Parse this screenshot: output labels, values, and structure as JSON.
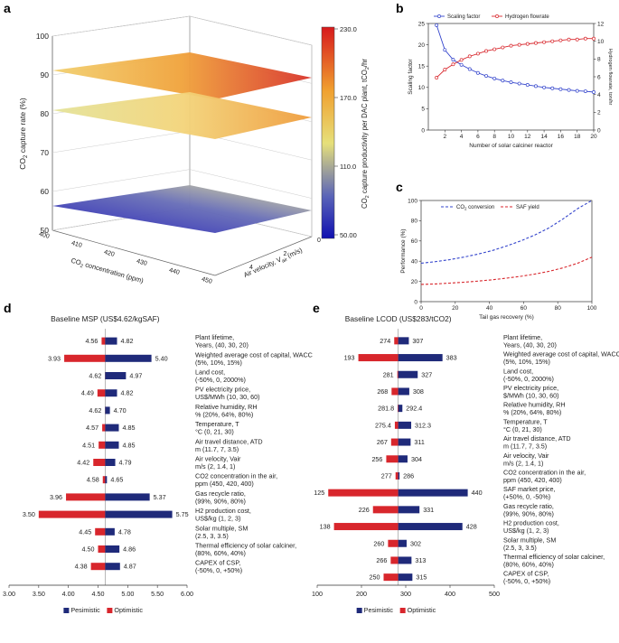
{
  "panels": {
    "a": "a",
    "b": "b",
    "c": "c",
    "d": "d",
    "e": "e"
  },
  "colors": {
    "pes": "#1f2a7a",
    "opt": "#d8262c",
    "blueLine": "#3344cc",
    "redLine": "#d8262c",
    "grid": "#aaaaaa"
  },
  "chart_data": [
    {
      "id": "a",
      "type": "surface3d",
      "zlabel": "CO2 capture rate (%)",
      "zlabel_parts": {
        "pre": "CO",
        "sub": "2",
        "post": " capture rate (%)"
      },
      "zticks": [
        "50",
        "60",
        "70",
        "80",
        "90",
        "100"
      ],
      "xlabel": "CO2 concentration (ppm)",
      "xlabel_parts": {
        "pre": "CO",
        "sub": "2",
        "post": " concentration (ppm)"
      },
      "xticks": [
        "450",
        "440",
        "430",
        "420",
        "410",
        "400"
      ],
      "ylabel": "Air velocity, Vair (m/s)",
      "ylabel_parts": {
        "pre": "Air velocity, V",
        "sub": "air",
        "post": " (m/s)"
      },
      "yticks": [
        "0",
        "2",
        "4"
      ],
      "planes": [
        90,
        80,
        50
      ],
      "colorbar": {
        "label": "CO2 capture productivity per DAC plant, tCO2/hr",
        "label_parts": {
          "pre": "CO",
          "sub": "2",
          "mid": " capture productivity per DAC plant, tCO",
          "sub2": "2",
          "post": "/hr"
        },
        "ticks": [
          "230.0",
          "170.0",
          "110.0",
          "50.00"
        ]
      }
    },
    {
      "id": "b",
      "type": "line",
      "x": [
        1,
        2,
        3,
        4,
        5,
        6,
        7,
        8,
        9,
        10,
        11,
        12,
        13,
        14,
        15,
        16,
        17,
        18,
        19,
        20
      ],
      "series": [
        {
          "name": "Scaling factor",
          "axis": "left",
          "values": [
            24.6,
            18.8,
            16.5,
            15.3,
            14.3,
            13.4,
            12.7,
            12.1,
            11.6,
            11.2,
            10.9,
            10.6,
            10.3,
            10.0,
            9.8,
            9.6,
            9.4,
            9.2,
            9.1,
            8.9
          ]
        },
        {
          "name": "Hydrogen flowrate",
          "axis": "right",
          "values": [
            5.9,
            6.8,
            7.4,
            7.9,
            8.3,
            8.6,
            8.9,
            9.1,
            9.3,
            9.5,
            9.6,
            9.7,
            9.8,
            9.9,
            10.0,
            10.1,
            10.2,
            10.2,
            10.3,
            10.3
          ]
        }
      ],
      "xlabel": "Number of solar calciner reactor",
      "ylabel": "Scaling factor",
      "y2label": "Hydrogen flowrate, ton/hr",
      "xlim": [
        0,
        20
      ],
      "ylim": [
        0,
        25
      ],
      "y2lim": [
        0,
        12
      ],
      "xticks": [
        "2",
        "4",
        "6",
        "8",
        "10",
        "12",
        "14",
        "16",
        "18",
        "20"
      ],
      "yticks": [
        "0",
        "5",
        "10",
        "15",
        "20",
        "25"
      ],
      "y2ticks": [
        "0",
        "2",
        "4",
        "6",
        "8",
        "10",
        "12"
      ]
    },
    {
      "id": "c",
      "type": "line",
      "series": [
        {
          "name": "CO2 conversion",
          "name_parts": {
            "pre": "CO",
            "sub": "2",
            "post": " conversion"
          },
          "values": [
            38,
            39.5,
            41.5,
            44,
            47,
            50.5,
            55,
            60,
            66,
            73,
            82,
            92,
            100
          ]
        },
        {
          "name": "SAF yield",
          "values": [
            17,
            17.5,
            18.3,
            19.2,
            20.3,
            21.6,
            23.2,
            25,
            27.3,
            30,
            33.5,
            38,
            44
          ]
        }
      ],
      "x": [
        0,
        8.3,
        16.7,
        25,
        33.3,
        41.7,
        50,
        58.3,
        66.7,
        75,
        83.3,
        91.7,
        100
      ],
      "xlabel": "Tail gas recovery (%)",
      "ylabel": "Performance (%)",
      "xlim": [
        0,
        100
      ],
      "ylim": [
        0,
        100
      ],
      "xticks": [
        "0",
        "20",
        "40",
        "60",
        "80",
        "100"
      ],
      "yticks": [
        "0",
        "20",
        "40",
        "60",
        "80",
        "100"
      ]
    },
    {
      "id": "d",
      "type": "tornado",
      "title": "Baseline MSP (US$4.62/kgSAF)",
      "baseline": 4.62,
      "xlim": [
        3.0,
        6.0
      ],
      "xticks": [
        "3.00",
        "3.50",
        "4.00",
        "4.50",
        "5.00",
        "5.50",
        "6.00"
      ],
      "legend": {
        "pes": "Pesimistic",
        "opt": "Optimistic"
      },
      "rows": [
        {
          "l1": "Plant lifetime,",
          "l2": "Years, (40, 30, 20)",
          "opt": 4.56,
          "pes": 4.82,
          "optL": "4.56",
          "pesL": "4.82"
        },
        {
          "l1": "Weighted average cost of capital, WACC",
          "l2": "(5%, 10%, 15%)",
          "opt": 3.93,
          "pes": 5.4,
          "optL": "3.93",
          "pesL": "5.40"
        },
        {
          "l1": "Land cost,",
          "l2": "(-50%, 0, 2000%)",
          "opt": 4.62,
          "pes": 4.97,
          "optL": "4.62",
          "pesL": "4.97"
        },
        {
          "l1": "PV electricity price,",
          "l2": "US$/MWh (10, 30, 60)",
          "opt": 4.49,
          "pes": 4.82,
          "optL": "4.49",
          "pesL": "4.82"
        },
        {
          "l1": "Relative humidity, RH",
          "l2": "% (20%, 64%, 80%)",
          "opt": 4.62,
          "pes": 4.7,
          "optL": "4.62",
          "pesL": "4.70"
        },
        {
          "l1": "Temperature, T",
          "l2": "°C (0, 21, 30)",
          "opt": 4.57,
          "pes": 4.85,
          "optL": "4.57",
          "pesL": "4.85"
        },
        {
          "l1": "Air travel distance, ATD",
          "l2": "m (11.7, 7, 3.5)",
          "opt": 4.51,
          "pes": 4.85,
          "optL": "4.51",
          "pesL": "4.85"
        },
        {
          "l1": "Air velocity, Vair",
          "l2": "m/s (2, 1.4, 1)",
          "opt": 4.42,
          "pes": 4.79,
          "optL": "4.42",
          "pesL": "4.79"
        },
        {
          "l1": "CO2 concentration in the air,",
          "l2": "ppm (450, 420, 400)",
          "opt": 4.58,
          "pes": 4.65,
          "optL": "4.58",
          "pesL": "4.65"
        },
        {
          "l1": "Gas recycle ratio,",
          "l2": "(99%, 90%, 80%)",
          "opt": 3.96,
          "pes": 5.37,
          "optL": "3.96",
          "pesL": "5.37"
        },
        {
          "l1": "H2 production cost,",
          "l2": "US$/kg (1, 2, 3)",
          "opt": 3.5,
          "pes": 5.75,
          "optL": "3.50",
          "pesL": "5.75"
        },
        {
          "l1": "Solar multiple, SM",
          "l2": "(2.5, 3, 3.5)",
          "opt": 4.45,
          "pes": 4.78,
          "optL": "4.45",
          "pesL": "4.78"
        },
        {
          "l1": "Thermal efficiency of solar calciner,",
          "l2": "(80%, 60%, 40%)",
          "opt": 4.5,
          "pes": 4.86,
          "optL": "4.50",
          "pesL": "4.86"
        },
        {
          "l1": "CAPEX of CSP,",
          "l2": "(-50%, 0, +50%)",
          "opt": 4.38,
          "pes": 4.87,
          "optL": "4.38",
          "pesL": "4.87"
        }
      ]
    },
    {
      "id": "e",
      "type": "tornado",
      "title": "Baseline LCOD (US$283/tCO2)",
      "baseline": 283,
      "xlim": [
        100,
        500
      ],
      "xticks": [
        "100",
        "200",
        "300",
        "400",
        "500"
      ],
      "legend": {
        "pes": "Pesimistic",
        "opt": "Optimistic"
      },
      "rows": [
        {
          "l1": "Plant lifetime,",
          "l2": "Years, (40, 30, 20)",
          "opt": 274,
          "pes": 307,
          "optL": "274",
          "pesL": "307"
        },
        {
          "l1": "Weighted average cost of capital, WACC",
          "l2": "(5%, 10%, 15%)",
          "opt": 193,
          "pes": 383,
          "optL": "193",
          "pesL": "383"
        },
        {
          "l1": "Land cost,",
          "l2": "(-50%, 0, 2000%)",
          "opt": 281,
          "pes": 327,
          "optL": "281",
          "pesL": "327"
        },
        {
          "l1": "PV electricity price,",
          "l2": "$/MWh (10, 30, 60)",
          "opt": 268,
          "pes": 308,
          "optL": "268",
          "pesL": "308"
        },
        {
          "l1": "Relative humidity, RH",
          "l2": "% (20%, 64%, 80%)",
          "opt": 281.8,
          "pes": 292.4,
          "optL": "281.8",
          "pesL": "292.4"
        },
        {
          "l1": "Temperature, T",
          "l2": "°C (0, 21, 30)",
          "opt": 275.4,
          "pes": 312.3,
          "optL": "275.4",
          "pesL": "312.3"
        },
        {
          "l1": "Air travel distance, ATD",
          "l2": "m (11.7, 7, 3.5)",
          "opt": 267,
          "pes": 311,
          "optL": "267",
          "pesL": "311"
        },
        {
          "l1": "Air velocity, Vair",
          "l2": "m/s (2, 1.4, 1)",
          "opt": 256,
          "pes": 304,
          "optL": "256",
          "pesL": "304"
        },
        {
          "l1": "CO2 concentration in the air,",
          "l2": "ppm (450, 420, 400)",
          "opt": 277,
          "pes": 286,
          "optL": "277",
          "pesL": "286"
        },
        {
          "l1": "SAF market price,",
          "l2": "(+50%, 0, -50%)",
          "opt": 125,
          "pes": 440,
          "optL": "125",
          "pesL": "440"
        },
        {
          "l1": "Gas recycle ratio,",
          "l2": "(99%, 90%, 80%)",
          "opt": 226,
          "pes": 331,
          "optL": "226",
          "pesL": "331"
        },
        {
          "l1": "H2 production cost,",
          "l2": "US$/kg (1, 2, 3)",
          "opt": 138,
          "pes": 428,
          "optL": "138",
          "pesL": "428"
        },
        {
          "l1": "Solar multiple, SM",
          "l2": "(2.5, 3, 3.5)",
          "opt": 260,
          "pes": 302,
          "optL": "260",
          "pesL": "302"
        },
        {
          "l1": "Thermal efficiency of solar calciner,",
          "l2": "(80%, 60%, 40%)",
          "opt": 266,
          "pes": 313,
          "optL": "266",
          "pesL": "313"
        },
        {
          "l1": "CAPEX of CSP,",
          "l2": "(-50%, 0, +50%)",
          "opt": 250,
          "pes": 315,
          "optL": "250",
          "pesL": "315"
        }
      ]
    }
  ]
}
